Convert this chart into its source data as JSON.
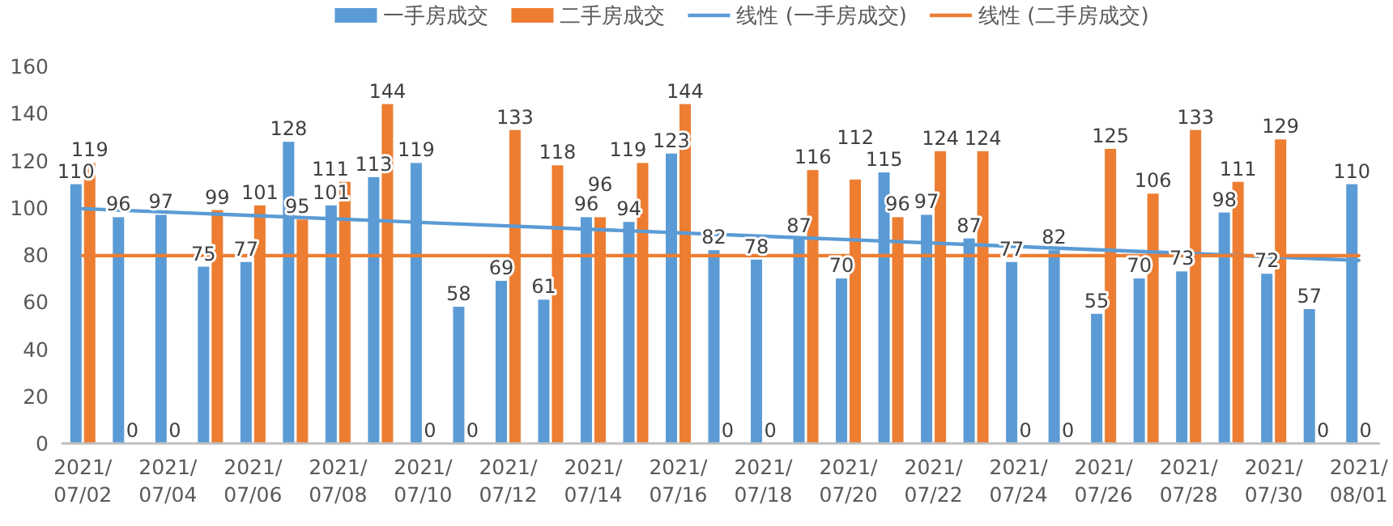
{
  "chart_data": {
    "type": "bar",
    "categories": [
      "2021/07/02",
      null,
      "2021/07/04",
      null,
      "2021/07/06",
      null,
      "2021/07/08",
      null,
      "2021/07/10",
      null,
      "2021/07/12",
      null,
      "2021/07/14",
      null,
      "2021/07/16",
      null,
      "2021/07/18",
      null,
      "2021/07/20",
      null,
      "2021/07/22",
      null,
      "2021/07/24",
      null,
      "2021/07/26",
      null,
      "2021/07/28",
      null,
      "2021/07/30",
      null,
      "2021/08/01"
    ],
    "series": [
      {
        "name": "一手房成交",
        "color": "#5b9bd5",
        "values": [
          110,
          96,
          97,
          75,
          77,
          128,
          101,
          113,
          119,
          58,
          69,
          61,
          96,
          94,
          123,
          82,
          78,
          87,
          70,
          115,
          97,
          87,
          77,
          82,
          55,
          70,
          73,
          98,
          72,
          57,
          110
        ],
        "value_labels": [
          "110",
          "96",
          "97",
          "75",
          "77",
          "128",
          "101",
          "113",
          "119",
          "58",
          "69",
          "61",
          "96",
          "94",
          "123",
          "82",
          "78",
          "87",
          "70",
          "115",
          "97",
          "87",
          "77",
          "82",
          "55",
          "70",
          "73",
          "98",
          "72",
          "57",
          "110"
        ]
      },
      {
        "name": "二手房成交",
        "color": "#ed7d31",
        "values": [
          119,
          0,
          0,
          99,
          101,
          95,
          111,
          144,
          0,
          0,
          133,
          118,
          96,
          119,
          144,
          0,
          0,
          116,
          112,
          96,
          124,
          124,
          0,
          0,
          125,
          106,
          133,
          111,
          129,
          0,
          0
        ],
        "value_labels": [
          "119",
          "0",
          "0",
          "99",
          "101",
          "95",
          "111",
          "144",
          "0",
          "0",
          "133",
          "118",
          "96",
          "119",
          "144",
          "0",
          "0",
          "116",
          "112",
          "96",
          "124",
          "124",
          "0",
          "0",
          "125",
          "106",
          "133",
          "111",
          "129",
          "0",
          "0"
        ]
      },
      {
        "name": "线性 (一手房成交)",
        "type": "line",
        "color": "#5b9bd5",
        "x": [
          "2021/07/02",
          "2021/08/01"
        ],
        "values": [
          99.6,
          77.7
        ]
      },
      {
        "name": "线性 (二手房成交)",
        "type": "line",
        "color": "#ed7d31",
        "x": [
          "2021/07/02",
          "2021/08/01"
        ],
        "values": [
          79.7,
          79.7
        ]
      }
    ],
    "ylim": [
      0,
      160
    ],
    "yticks": [
      0,
      20,
      40,
      60,
      80,
      100,
      120,
      140,
      160
    ],
    "grid": false,
    "legend": "top",
    "marker": "none",
    "line_style": "solid"
  }
}
